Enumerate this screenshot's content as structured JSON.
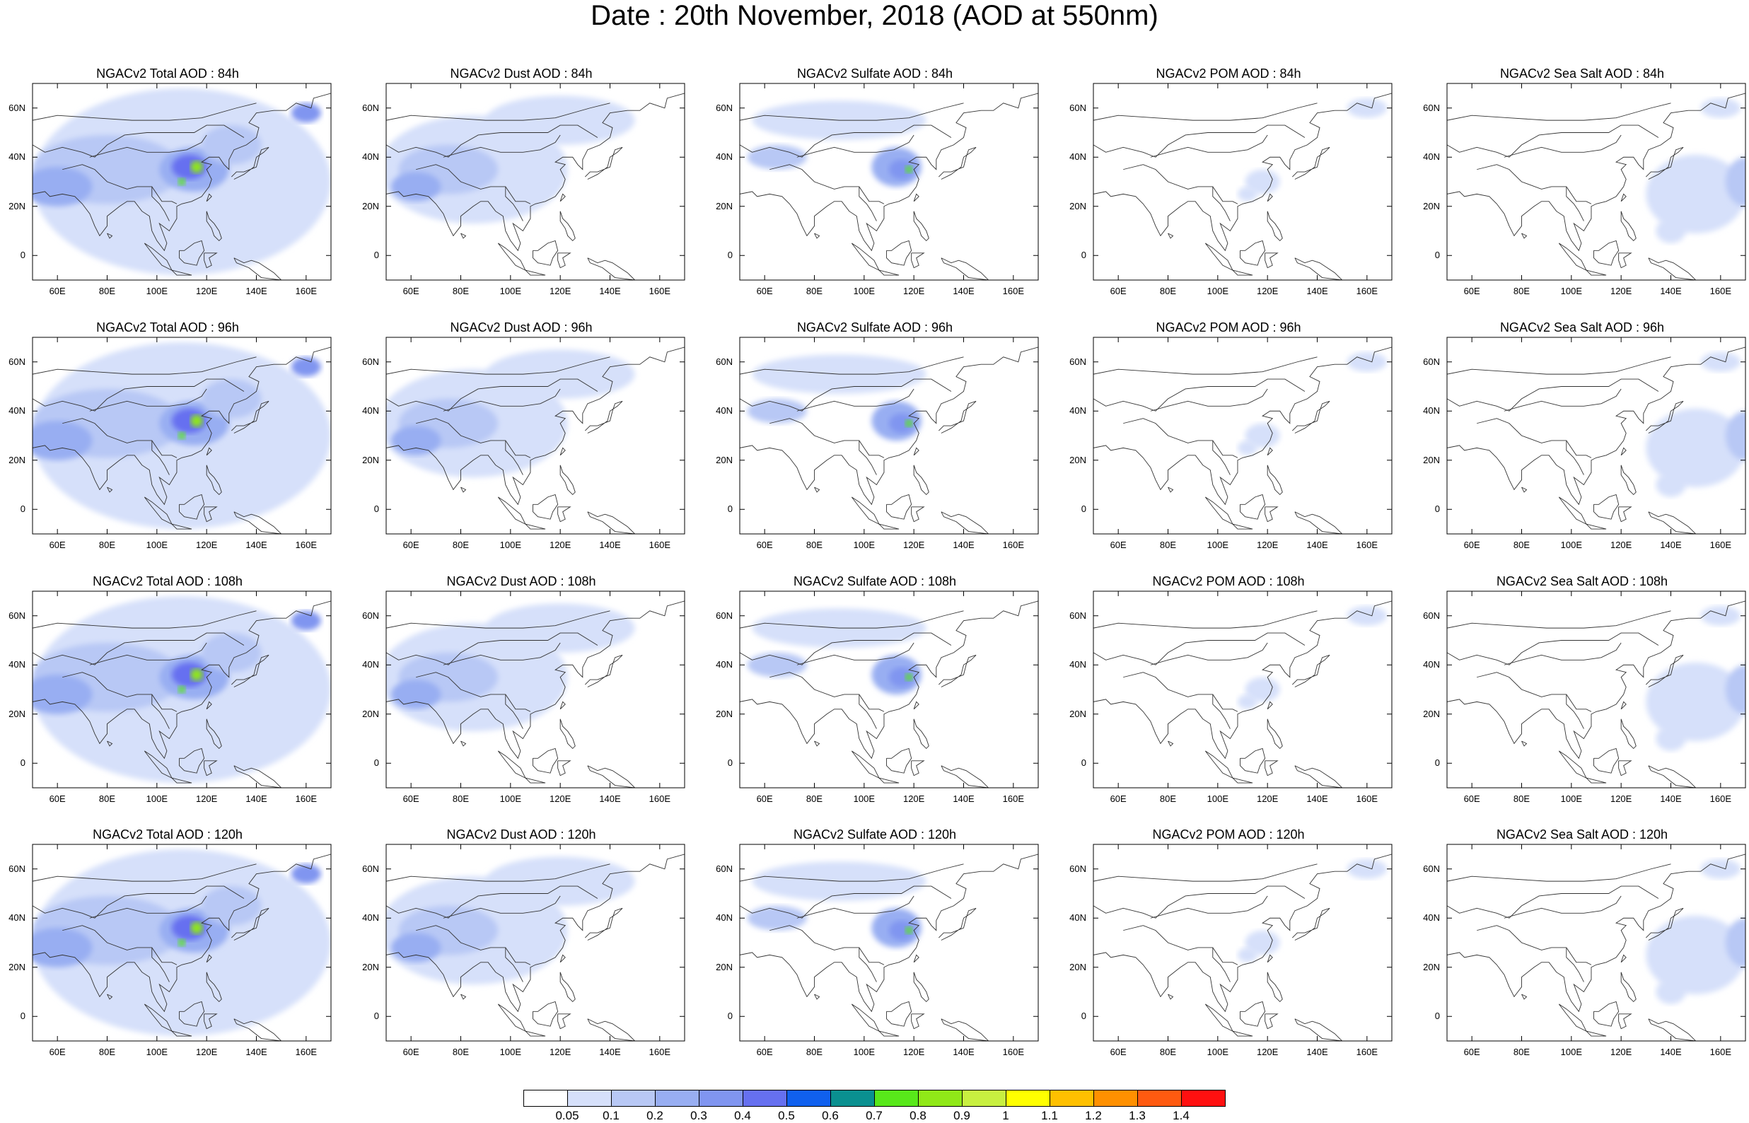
{
  "title": "Date : 20th November, 2018 (AOD at 550nm)",
  "lat_ticks": [
    "60N",
    "40N",
    "20N",
    "0"
  ],
  "lat_values": [
    60,
    40,
    20,
    0
  ],
  "lon_ticks": [
    "60E",
    "80E",
    "100E",
    "120E",
    "140E",
    "160E"
  ],
  "lon_values": [
    60,
    80,
    100,
    120,
    140,
    160
  ],
  "map_extent": {
    "lon": [
      50,
      170
    ],
    "lat": [
      -10,
      70
    ]
  },
  "panels": [
    {
      "title": "NGACv2 Total AOD : 84h",
      "field": "total"
    },
    {
      "title": "NGACv2 Dust AOD : 84h",
      "field": "dust"
    },
    {
      "title": "NGACv2 Sulfate AOD : 84h",
      "field": "sulfate"
    },
    {
      "title": "NGACv2 POM AOD : 84h",
      "field": "pom"
    },
    {
      "title": "NGACv2 Sea Salt AOD : 84h",
      "field": "seasalt"
    },
    {
      "title": "NGACv2 Total AOD : 96h",
      "field": "total"
    },
    {
      "title": "NGACv2 Dust AOD : 96h",
      "field": "dust"
    },
    {
      "title": "NGACv2 Sulfate AOD : 96h",
      "field": "sulfate"
    },
    {
      "title": "NGACv2 POM AOD : 96h",
      "field": "pom"
    },
    {
      "title": "NGACv2 Sea Salt AOD : 96h",
      "field": "seasalt"
    },
    {
      "title": "NGACv2 Total AOD : 108h",
      "field": "total"
    },
    {
      "title": "NGACv2 Dust AOD : 108h",
      "field": "dust"
    },
    {
      "title": "NGACv2 Sulfate AOD : 108h",
      "field": "sulfate"
    },
    {
      "title": "NGACv2 POM AOD : 108h",
      "field": "pom"
    },
    {
      "title": "NGACv2 Sea Salt AOD : 108h",
      "field": "seasalt"
    },
    {
      "title": "NGACv2 Total AOD : 120h",
      "field": "total"
    },
    {
      "title": "NGACv2 Dust AOD : 120h",
      "field": "dust"
    },
    {
      "title": "NGACv2 Sulfate AOD : 120h",
      "field": "sulfate"
    },
    {
      "title": "NGACv2 POM AOD : 120h",
      "field": "pom"
    },
    {
      "title": "NGACv2 Sea Salt  AOD : 120h",
      "field": "seasalt"
    }
  ],
  "colorbar": {
    "labels": [
      "0.05",
      "0.1",
      "0.2",
      "0.3",
      "0.4",
      "0.5",
      "0.6",
      "0.7",
      "0.8",
      "0.9",
      "1",
      "1.1",
      "1.2",
      "1.3",
      "1.4"
    ],
    "colors": [
      "#ffffff",
      "#d6e0fa",
      "#b8c8f5",
      "#98aef2",
      "#8095f0",
      "#6670f0",
      "#1060ee",
      "#0a9090",
      "#58e81a",
      "#90e818",
      "#c8f040",
      "#ffff00",
      "#ffc000",
      "#ff9000",
      "#ff5a10",
      "#ff1010"
    ]
  }
}
